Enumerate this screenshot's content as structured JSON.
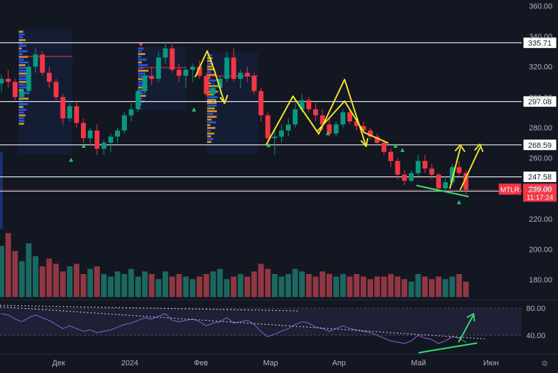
{
  "chart_data": {
    "type": "candlestick",
    "symbol": "MTLR",
    "price_axis": {
      "min": 160,
      "max": 360,
      "ticks": [
        360,
        340,
        320,
        300,
        280,
        260,
        240,
        220,
        200,
        180
      ]
    },
    "time_axis": {
      "labels": [
        "Дек",
        "2024",
        "Фев",
        "Мар",
        "Апр",
        "Май",
        "Июн"
      ]
    },
    "levels": [
      {
        "value": 335.71,
        "label": "335.71"
      },
      {
        "value": 297.08,
        "label": "297.08"
      },
      {
        "value": 268.59,
        "label": "268.59"
      },
      {
        "value": 247.58,
        "label": "247.58"
      },
      {
        "value": 238.14,
        "label": "238.14"
      }
    ],
    "last_price": {
      "symbol": "MTLR",
      "value": 239.0,
      "label": "239.00",
      "countdown": "11:17:24"
    },
    "ohlc": [
      [
        309,
        315,
        303,
        312
      ],
      [
        312,
        318,
        306,
        310
      ],
      [
        310,
        312,
        298,
        300
      ],
      [
        300,
        306,
        294,
        304
      ],
      [
        304,
        322,
        302,
        320
      ],
      [
        320,
        332,
        316,
        328
      ],
      [
        328,
        330,
        314,
        316
      ],
      [
        316,
        320,
        306,
        310
      ],
      [
        310,
        312,
        298,
        300
      ],
      [
        300,
        302,
        282,
        286
      ],
      [
        286,
        296,
        284,
        294
      ],
      [
        294,
        298,
        280,
        283
      ],
      [
        283,
        286,
        270,
        273
      ],
      [
        273,
        280,
        268,
        278
      ],
      [
        278,
        282,
        262,
        266
      ],
      [
        266,
        272,
        262,
        270
      ],
      [
        270,
        276,
        264,
        274
      ],
      [
        274,
        280,
        270,
        278
      ],
      [
        278,
        290,
        276,
        288
      ],
      [
        288,
        296,
        284,
        292
      ],
      [
        292,
        306,
        290,
        304
      ],
      [
        304,
        316,
        302,
        314
      ],
      [
        314,
        320,
        308,
        312
      ],
      [
        312,
        330,
        310,
        326
      ],
      [
        326,
        336,
        322,
        332
      ],
      [
        332,
        336,
        316,
        318
      ],
      [
        318,
        322,
        310,
        314
      ],
      [
        314,
        320,
        306,
        318
      ],
      [
        318,
        322,
        310,
        320
      ],
      [
        320,
        324,
        312,
        314
      ],
      [
        314,
        316,
        300,
        302
      ],
      [
        302,
        310,
        296,
        306
      ],
      [
        306,
        314,
        302,
        312
      ],
      [
        312,
        330,
        310,
        326
      ],
      [
        326,
        332,
        310,
        312
      ],
      [
        312,
        318,
        306,
        316
      ],
      [
        316,
        320,
        310,
        314
      ],
      [
        314,
        316,
        302,
        304
      ],
      [
        304,
        306,
        284,
        288
      ],
      [
        288,
        290,
        270,
        273
      ],
      [
        273,
        278,
        262,
        274
      ],
      [
        274,
        282,
        270,
        278
      ],
      [
        278,
        286,
        274,
        282
      ],
      [
        282,
        296,
        280,
        292
      ],
      [
        292,
        302,
        290,
        298
      ],
      [
        298,
        300,
        290,
        292
      ],
      [
        292,
        296,
        284,
        288
      ],
      [
        288,
        292,
        278,
        282
      ],
      [
        282,
        286,
        274,
        276
      ],
      [
        276,
        284,
        274,
        282
      ],
      [
        282,
        292,
        280,
        290
      ],
      [
        290,
        292,
        282,
        284
      ],
      [
        284,
        288,
        278,
        281
      ],
      [
        281,
        284,
        276,
        278
      ],
      [
        278,
        280,
        272,
        274
      ],
      [
        274,
        276,
        268,
        270
      ],
      [
        270,
        272,
        262,
        264
      ],
      [
        264,
        266,
        254,
        258
      ],
      [
        258,
        260,
        246,
        249
      ],
      [
        249,
        252,
        242,
        245
      ],
      [
        245,
        252,
        244,
        250
      ],
      [
        250,
        262,
        248,
        258
      ],
      [
        258,
        262,
        250,
        253
      ],
      [
        253,
        256,
        246,
        249
      ],
      [
        249,
        250,
        238,
        240
      ],
      [
        240,
        248,
        238,
        244
      ],
      [
        244,
        256,
        242,
        254
      ],
      [
        254,
        258,
        248,
        250
      ],
      [
        250,
        252,
        236,
        239
      ]
    ],
    "volume_axis": {
      "min": 160,
      "max": 220
    },
    "volume": [
      200,
      210,
      196,
      188,
      202,
      192,
      184,
      190,
      186,
      180,
      184,
      186,
      178,
      182,
      184,
      178,
      176,
      180,
      178,
      182,
      176,
      180,
      178,
      174,
      180,
      176,
      178,
      176,
      174,
      176,
      178,
      180,
      182,
      174,
      176,
      178,
      176,
      180,
      186,
      182,
      178,
      176,
      178,
      182,
      180,
      178,
      176,
      180,
      178,
      176,
      178,
      176,
      178,
      176,
      174,
      176,
      176,
      178,
      176,
      174,
      172,
      178,
      176,
      174,
      176,
      174,
      176,
      178,
      172
    ],
    "rsi": {
      "ticks": [
        80,
        40
      ],
      "values": [
        72,
        70,
        64,
        60,
        66,
        70,
        66,
        62,
        56,
        50,
        54,
        50,
        46,
        48,
        44,
        46,
        48,
        52,
        56,
        58,
        62,
        66,
        64,
        68,
        72,
        62,
        60,
        62,
        64,
        60,
        54,
        58,
        60,
        66,
        58,
        60,
        62,
        56,
        46,
        38,
        42,
        46,
        50,
        56,
        60,
        58,
        52,
        50,
        46,
        50,
        54,
        50,
        48,
        46,
        44,
        40,
        36,
        32,
        30,
        28,
        32,
        40,
        36,
        34,
        28,
        32,
        38,
        36,
        30
      ]
    }
  }
}
